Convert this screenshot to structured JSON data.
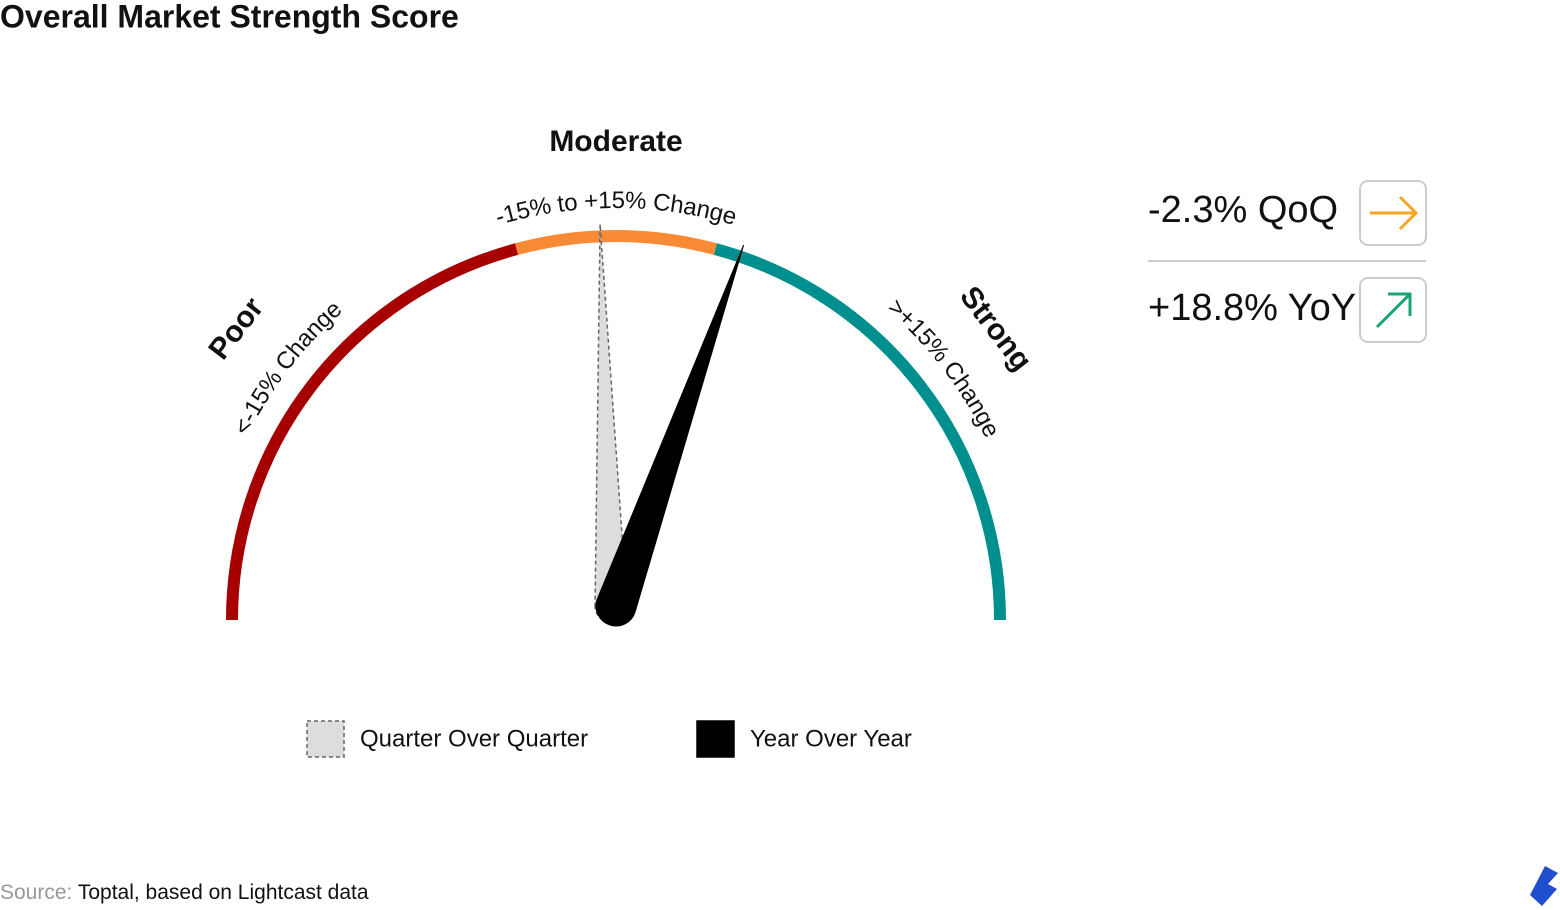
{
  "chart_data": {
    "type": "gauge",
    "title": "Overall Market Strength Score",
    "range": [
      -90,
      90
    ],
    "zones": [
      {
        "name": "Poor",
        "label": "<-15% Change",
        "from": -90,
        "to": -15,
        "color": "#a60000"
      },
      {
        "name": "Moderate",
        "label": "-15% to +15% Change",
        "from": -15,
        "to": 15,
        "color": "#f98a36"
      },
      {
        "name": "Strong",
        "label": ">+15% Change",
        "from": 15,
        "to": 90,
        "color": "#008f8f"
      }
    ],
    "series": [
      {
        "name": "Quarter Over Quarter",
        "value": -2.3,
        "value_label": "-2.3% QoQ",
        "color": "#dddddd"
      },
      {
        "name": "Year Over Year",
        "value": 18.8,
        "value_label": "+18.8% YoY",
        "color": "#000000"
      }
    ],
    "source_label": "Source:",
    "source": "Toptal, based on Lightcast data"
  }
}
